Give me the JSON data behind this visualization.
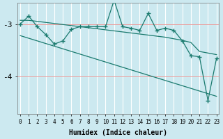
{
  "xlabel": "Humidex (Indice chaleur)",
  "bg_color": "#cce9f0",
  "line_color": "#1a7a6e",
  "grid_color": "#ffffff",
  "x_ticks": [
    0,
    1,
    2,
    3,
    4,
    5,
    6,
    7,
    8,
    9,
    10,
    11,
    12,
    13,
    14,
    15,
    16,
    17,
    18,
    19,
    20,
    21,
    22,
    23
  ],
  "y_ticks": [
    -4,
    -3
  ],
  "ylim": [
    -4.7,
    -2.6
  ],
  "xlim": [
    -0.3,
    23.3
  ],
  "main_line_y": [
    -3.0,
    -2.85,
    -3.05,
    -3.2,
    -3.38,
    -3.32,
    -3.1,
    -3.05,
    -3.05,
    -3.05,
    -3.05,
    -2.55,
    -3.05,
    -3.08,
    -3.12,
    -2.8,
    -3.12,
    -3.08,
    -3.12,
    -3.32,
    -3.6,
    -3.62,
    -4.45,
    -3.65
  ],
  "upper_line_y": [
    -2.93,
    -2.93,
    -2.95,
    -2.97,
    -2.99,
    -3.01,
    -3.03,
    -3.05,
    -3.07,
    -3.09,
    -3.11,
    -3.13,
    -3.15,
    -3.17,
    -3.19,
    -3.21,
    -3.23,
    -3.25,
    -3.28,
    -3.31,
    -3.35,
    -3.52,
    -3.55,
    -3.58
  ],
  "lower_line_y": [
    -3.22,
    -3.27,
    -3.32,
    -3.37,
    -3.42,
    -3.47,
    -3.52,
    -3.57,
    -3.62,
    -3.67,
    -3.72,
    -3.77,
    -3.82,
    -3.87,
    -3.92,
    -3.97,
    -4.02,
    -4.07,
    -4.12,
    -4.17,
    -4.22,
    -4.27,
    -4.32,
    -4.37
  ]
}
